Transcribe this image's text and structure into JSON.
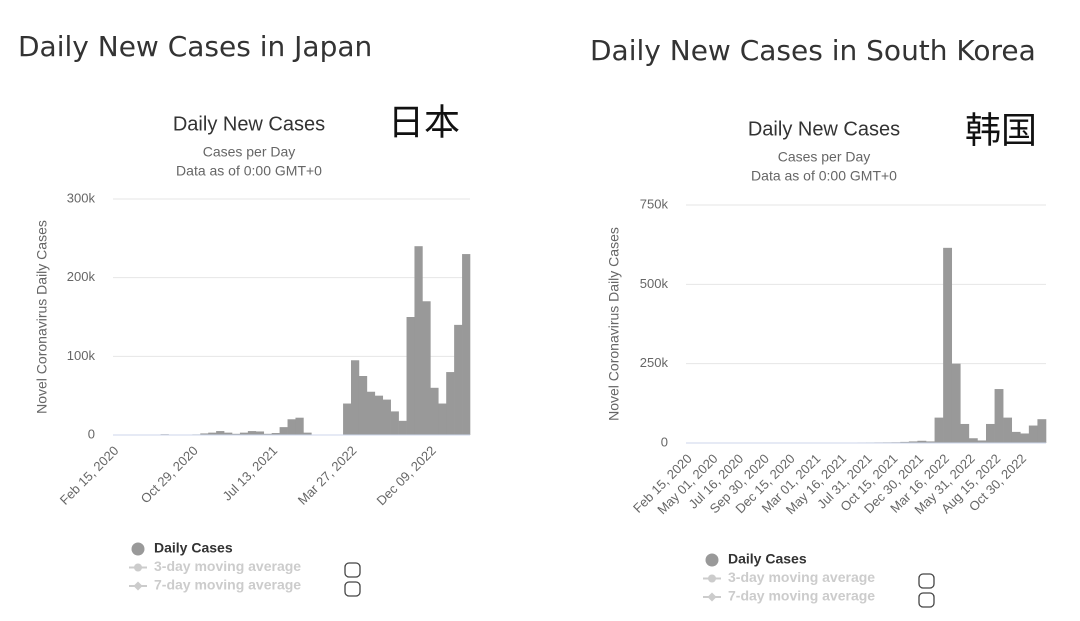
{
  "chart_data": [
    {
      "type": "bar",
      "heading": "Daily New Cases in Japan",
      "title": "Daily New Cases",
      "subtitles": [
        "Cases per Day",
        "Data as of 0:00 GMT+0"
      ],
      "annotation": "日本",
      "y_label": "Novel Coronavirus Daily Cases",
      "categories": [
        "Feb 15, 2020",
        null,
        null,
        null,
        null,
        null,
        null,
        null,
        null,
        null,
        "Oct 29, 2020",
        null,
        null,
        null,
        null,
        null,
        null,
        null,
        null,
        null,
        "Jul 13, 2021",
        null,
        null,
        null,
        null,
        null,
        null,
        null,
        null,
        null,
        "Mar 27, 2022",
        null,
        null,
        null,
        null,
        null,
        null,
        null,
        null,
        null,
        "Dec 09, 2022",
        null,
        null,
        null,
        null
      ],
      "series": [
        {
          "name": "Daily Cases",
          "color": "#999999",
          "visible": true,
          "values": [
            0,
            100,
            400,
            100,
            50,
            500,
            1000,
            600,
            500,
            600,
            800,
            2000,
            3000,
            5000,
            3000,
            1500,
            3000,
            5000,
            4500,
            1500,
            2500,
            10000,
            20000,
            22000,
            3000,
            200,
            200,
            200,
            300,
            40000,
            95000,
            75000,
            55000,
            50000,
            45000,
            30000,
            18000,
            150000,
            240000,
            170000,
            60000,
            40000,
            80000,
            140000,
            230000
          ]
        },
        {
          "name": "3-day moving average",
          "color": "#cccccc",
          "visible": false
        },
        {
          "name": "7-day moving average",
          "color": "#cccccc",
          "visible": false
        }
      ],
      "ylim": [
        0,
        300000
      ],
      "yticks": [
        0,
        {
          "value": 100000,
          "label": "100k"
        },
        {
          "value": 200000,
          "label": "200k"
        },
        {
          "value": 300000,
          "label": "300k"
        }
      ],
      "grid": true
    },
    {
      "type": "bar",
      "heading": "Daily New Cases in South Korea",
      "title": "Daily New Cases",
      "subtitles": [
        "Cases per Day",
        "Data as of 0:00 GMT+0"
      ],
      "annotation": "韩国",
      "y_label": "Novel Coronavirus Daily Cases",
      "categories": [
        "Feb 15, 2020",
        null,
        null,
        "May 01, 2020",
        null,
        null,
        "Jul 16, 2020",
        null,
        null,
        "Sep 30, 2020",
        null,
        null,
        "Dec 15, 2020",
        null,
        null,
        "Mar 01, 2021",
        null,
        null,
        "May 16, 2021",
        null,
        null,
        "Jul 31, 2021",
        null,
        null,
        "Oct 15, 2021",
        null,
        null,
        "Dec 30, 2021",
        null,
        null,
        "Mar 16, 2022",
        null,
        null,
        "May 31, 2022",
        null,
        null,
        "Aug 15, 2022",
        null,
        null,
        "Oct 30, 2022",
        null,
        null
      ],
      "series": [
        {
          "name": "Daily Cases",
          "color": "#999999",
          "visible": true,
          "values": [
            0,
            300,
            200,
            100,
            50,
            100,
            300,
            200,
            100,
            100,
            400,
            600,
            800,
            500,
            400,
            450,
            500,
            600,
            1200,
            1500,
            1700,
            1800,
            2000,
            2200,
            2500,
            3500,
            5000,
            7000,
            5000,
            80000,
            615000,
            250000,
            60000,
            15000,
            8000,
            60000,
            170000,
            80000,
            35000,
            30000,
            55000,
            75000
          ]
        },
        {
          "name": "3-day moving average",
          "color": "#cccccc",
          "visible": false
        },
        {
          "name": "7-day moving average",
          "color": "#cccccc",
          "visible": false
        }
      ],
      "ylim": [
        0,
        750000
      ],
      "yticks": [
        0,
        {
          "value": 250000,
          "label": "250k"
        },
        {
          "value": 500000,
          "label": "500k"
        },
        {
          "value": 750000,
          "label": "750k"
        }
      ],
      "grid": true
    }
  ]
}
